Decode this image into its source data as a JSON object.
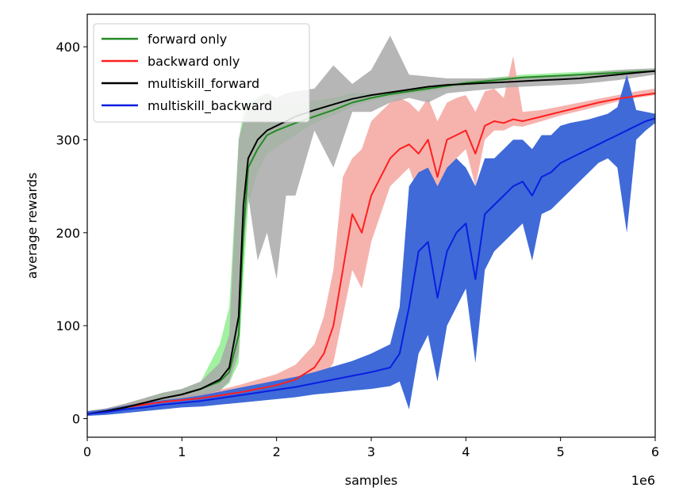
{
  "chart_data": {
    "type": "line",
    "xlabel": "samples",
    "ylabel": "average rewards",
    "x_offset_label": "1e6",
    "xlim": [
      0,
      6
    ],
    "ylim": [
      -20,
      435
    ],
    "xticks": [
      0,
      1,
      2,
      3,
      4,
      5,
      6
    ],
    "xtick_labels": [
      "0",
      "1",
      "2",
      "3",
      "4",
      "5",
      "6"
    ],
    "yticks": [
      0,
      100,
      200,
      300,
      400
    ],
    "ytick_labels": [
      "0",
      "100",
      "200",
      "300",
      "400"
    ],
    "grid": false,
    "legend": {
      "position": "top-left"
    },
    "series": [
      {
        "name": "forward only",
        "color": "#228B22",
        "band_color": "#90EE90",
        "x": [
          0,
          0.2,
          0.4,
          0.6,
          0.8,
          1.0,
          1.2,
          1.4,
          1.5,
          1.6,
          1.65,
          1.7,
          1.8,
          1.9,
          2.0,
          2.2,
          2.4,
          2.6,
          2.8,
          3.0,
          3.2,
          3.4,
          3.6,
          3.8,
          4.0,
          4.2,
          4.4,
          4.6,
          4.8,
          5.0,
          5.2,
          5.4,
          5.6,
          5.8,
          6.0
        ],
        "values": [
          5,
          8,
          12,
          17,
          22,
          26,
          32,
          40,
          50,
          90,
          200,
          270,
          290,
          305,
          310,
          318,
          325,
          332,
          340,
          345,
          349,
          352,
          355,
          358,
          361,
          363,
          365,
          367,
          368,
          369,
          370,
          371,
          372,
          373,
          374
        ],
        "lower": [
          3,
          5,
          8,
          12,
          16,
          20,
          25,
          30,
          38,
          60,
          150,
          230,
          265,
          285,
          292,
          305,
          318,
          326,
          336,
          342,
          346,
          349,
          352,
          355,
          358,
          360,
          362,
          364,
          365,
          366,
          367,
          368,
          370,
          371,
          372
        ],
        "upper": [
          8,
          11,
          16,
          22,
          28,
          32,
          40,
          80,
          120,
          300,
          330,
          340,
          345,
          350,
          340,
          340,
          342,
          345,
          350,
          350,
          352,
          355,
          358,
          361,
          364,
          366,
          368,
          370,
          371,
          372,
          373,
          374,
          375,
          376,
          376
        ]
      },
      {
        "name": "backward only",
        "color": "#FF1F1F",
        "band_color": "#F4A6A0",
        "x": [
          0,
          0.2,
          0.4,
          0.6,
          0.8,
          1.0,
          1.2,
          1.4,
          1.6,
          1.8,
          2.0,
          2.2,
          2.4,
          2.5,
          2.6,
          2.7,
          2.8,
          2.9,
          3.0,
          3.1,
          3.2,
          3.3,
          3.4,
          3.5,
          3.6,
          3.7,
          3.8,
          3.9,
          4.0,
          4.1,
          4.2,
          4.3,
          4.4,
          4.5,
          4.6,
          4.8,
          5.0,
          5.2,
          5.4,
          5.6,
          5.8,
          6.0
        ],
        "values": [
          5,
          8,
          12,
          15,
          18,
          20,
          22,
          25,
          28,
          32,
          36,
          42,
          55,
          70,
          100,
          160,
          220,
          200,
          240,
          260,
          280,
          290,
          295,
          285,
          300,
          260,
          300,
          305,
          310,
          285,
          315,
          320,
          318,
          322,
          320,
          325,
          330,
          335,
          340,
          344,
          347,
          350
        ],
        "lower": [
          3,
          5,
          8,
          10,
          13,
          15,
          17,
          19,
          21,
          24,
          27,
          30,
          36,
          45,
          60,
          110,
          160,
          140,
          190,
          220,
          250,
          260,
          270,
          240,
          270,
          210,
          270,
          280,
          290,
          250,
          300,
          310,
          310,
          315,
          314,
          320,
          326,
          331,
          336,
          341,
          345,
          348
        ],
        "upper": [
          8,
          11,
          16,
          20,
          23,
          25,
          27,
          31,
          36,
          42,
          48,
          58,
          80,
          110,
          160,
          260,
          280,
          290,
          320,
          330,
          340,
          345,
          340,
          330,
          345,
          320,
          340,
          345,
          348,
          330,
          352,
          355,
          345,
          390,
          330,
          332,
          336,
          340,
          344,
          348,
          352,
          355
        ]
      },
      {
        "name": "multiskill_forward",
        "color": "#000000",
        "band_color": "#A9A9A9",
        "x": [
          0,
          0.2,
          0.4,
          0.6,
          0.8,
          1.0,
          1.2,
          1.4,
          1.5,
          1.6,
          1.65,
          1.7,
          1.8,
          1.9,
          2.0,
          2.1,
          2.2,
          2.4,
          2.6,
          2.8,
          3.0,
          3.2,
          3.4,
          3.6,
          3.8,
          4.0,
          4.2,
          4.4,
          4.6,
          4.8,
          5.0,
          5.2,
          5.4,
          5.6,
          5.8,
          6.0
        ],
        "values": [
          5,
          8,
          12,
          17,
          22,
          26,
          32,
          42,
          55,
          110,
          230,
          280,
          300,
          310,
          315,
          320,
          325,
          332,
          338,
          344,
          348,
          351,
          354,
          357,
          359,
          360,
          361,
          362,
          363,
          364,
          365,
          366,
          368,
          370,
          372,
          374
        ],
        "lower": [
          3,
          5,
          8,
          12,
          16,
          20,
          25,
          30,
          40,
          70,
          180,
          240,
          170,
          200,
          150,
          240,
          240,
          310,
          270,
          330,
          330,
          340,
          345,
          340,
          350,
          352,
          354,
          356,
          357,
          358,
          359,
          360,
          362,
          364,
          367,
          370
        ],
        "upper": [
          8,
          11,
          16,
          22,
          28,
          32,
          40,
          60,
          90,
          300,
          320,
          335,
          345,
          350,
          345,
          350,
          352,
          355,
          380,
          360,
          375,
          412,
          370,
          368,
          366,
          366,
          366,
          367,
          368,
          369,
          370,
          371,
          373,
          375,
          376,
          377
        ]
      },
      {
        "name": "multiskill_backward",
        "color": "#0A1EE0",
        "band_color": "#3F6AD8",
        "x": [
          0,
          0.2,
          0.4,
          0.6,
          0.8,
          1.0,
          1.2,
          1.4,
          1.6,
          1.8,
          2.0,
          2.2,
          2.4,
          2.6,
          2.8,
          3.0,
          3.2,
          3.3,
          3.4,
          3.5,
          3.6,
          3.7,
          3.8,
          3.9,
          4.0,
          4.1,
          4.2,
          4.3,
          4.4,
          4.5,
          4.6,
          4.7,
          4.8,
          4.9,
          5.0,
          5.1,
          5.2,
          5.3,
          5.4,
          5.5,
          5.6,
          5.7,
          5.8,
          5.9,
          6.0
        ],
        "values": [
          5,
          7,
          10,
          12,
          15,
          17,
          19,
          22,
          25,
          28,
          31,
          34,
          38,
          42,
          46,
          50,
          55,
          70,
          120,
          180,
          190,
          130,
          180,
          200,
          210,
          150,
          220,
          230,
          240,
          250,
          255,
          240,
          260,
          265,
          275,
          280,
          285,
          290,
          295,
          300,
          305,
          310,
          315,
          320,
          323
        ],
        "lower": [
          3,
          4,
          6,
          8,
          10,
          12,
          13,
          15,
          17,
          19,
          21,
          23,
          26,
          28,
          30,
          32,
          35,
          40,
          10,
          70,
          90,
          40,
          100,
          120,
          140,
          60,
          160,
          180,
          190,
          200,
          210,
          170,
          220,
          225,
          235,
          245,
          255,
          265,
          275,
          280,
          270,
          200,
          300,
          310,
          318
        ],
        "upper": [
          8,
          10,
          14,
          17,
          20,
          22,
          25,
          29,
          33,
          37,
          41,
          45,
          50,
          56,
          62,
          70,
          80,
          120,
          250,
          265,
          270,
          250,
          270,
          280,
          270,
          250,
          280,
          280,
          290,
          300,
          300,
          290,
          305,
          305,
          315,
          318,
          320,
          322,
          325,
          328,
          335,
          370,
          332,
          330,
          328
        ]
      }
    ]
  }
}
